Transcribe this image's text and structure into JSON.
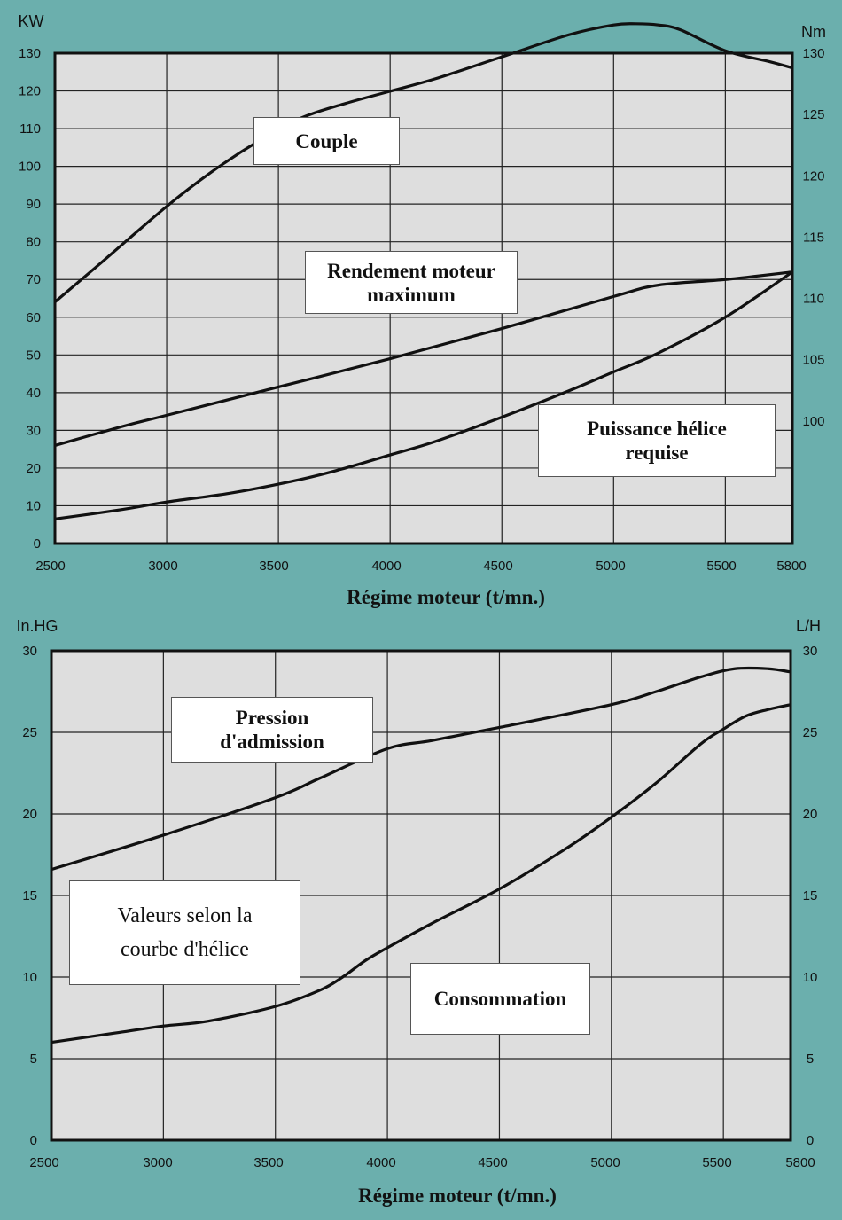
{
  "chart_data": [
    {
      "type": "line",
      "title": "",
      "xlabel": "Régime moteur (t/mn.)",
      "ylabel": "KW",
      "y2label": "Nm",
      "x_ticks": [
        2500,
        3000,
        3500,
        4000,
        4500,
        5000,
        5500,
        5800
      ],
      "xlim": [
        2500,
        5800
      ],
      "ylim": [
        0,
        130
      ],
      "y_ticks": [
        0,
        10,
        20,
        30,
        40,
        50,
        60,
        70,
        80,
        90,
        100,
        110,
        120,
        130
      ],
      "y2lim": [
        90,
        130
      ],
      "y2_ticks": [
        100,
        105,
        110,
        115,
        120,
        125,
        130
      ],
      "grid": true,
      "annotations": [
        {
          "id": "couple",
          "text": "Couple"
        },
        {
          "id": "rendement",
          "text": "Rendement moteur\nmaximum"
        },
        {
          "id": "puissance",
          "text": "Puissance hélice\nrequise"
        }
      ],
      "series": [
        {
          "name": "Couple",
          "axis": "y2",
          "x": [
            2500,
            2700,
            3000,
            3200,
            3400,
            3600,
            3800,
            4000,
            4200,
            4500,
            4800,
            5000,
            5100,
            5200,
            5300,
            5500,
            5700,
            5800
          ],
          "values": [
            109.7,
            112.8,
            117.5,
            120.3,
            122.7,
            124.7,
            125.9,
            126.9,
            127.9,
            129.7,
            131.5,
            132.3,
            132.4,
            132.3,
            131.9,
            130.2,
            129.3,
            128.8
          ]
        },
        {
          "name": "Rendement moteur maximum",
          "x": [
            2500,
            2800,
            3000,
            3500,
            4000,
            4500,
            5000,
            5200,
            5500,
            5800
          ],
          "values": [
            26,
            31,
            34,
            41.5,
            49,
            57,
            65.5,
            68.5,
            70,
            72
          ]
        },
        {
          "name": "Puissance hélice requise",
          "x": [
            2500,
            2800,
            3000,
            3300,
            3600,
            3800,
            4000,
            4200,
            4500,
            4800,
            5000,
            5200,
            5500,
            5800
          ],
          "values": [
            6.5,
            9,
            11,
            13.5,
            17,
            20,
            23.5,
            27,
            33.5,
            40.5,
            45.5,
            50.5,
            60,
            72
          ]
        }
      ]
    },
    {
      "type": "line",
      "title": "",
      "xlabel": "Régime moteur (t/mn.)",
      "ylabel": "In.HG",
      "y2label": "L/H",
      "x_ticks": [
        2500,
        3000,
        3500,
        4000,
        4500,
        5000,
        5500,
        5800
      ],
      "xlim": [
        2500,
        5800
      ],
      "ylim": [
        0,
        30
      ],
      "y_ticks": [
        0,
        5,
        10,
        15,
        20,
        25,
        30
      ],
      "y2lim": [
        0,
        30
      ],
      "y2_ticks": [
        0,
        5,
        10,
        15,
        20,
        25,
        30
      ],
      "grid": true,
      "annotations": [
        {
          "id": "pression",
          "text": "Pression\nd'admission"
        },
        {
          "id": "valeurs",
          "text": "Valeurs selon la\ncourbe d'hélice"
        },
        {
          "id": "consommation",
          "text": "Consommation"
        }
      ],
      "series": [
        {
          "name": "Pression d'admission",
          "x": [
            2500,
            3000,
            3500,
            3700,
            4000,
            4200,
            4500,
            5000,
            5200,
            5400,
            5550,
            5700,
            5800
          ],
          "values": [
            16.6,
            18.7,
            21,
            22.2,
            24,
            24.5,
            25.3,
            26.7,
            27.5,
            28.4,
            28.9,
            28.9,
            28.7
          ]
        },
        {
          "name": "Consommation",
          "x": [
            2500,
            2800,
            3000,
            3200,
            3500,
            3700,
            3800,
            3900,
            4000,
            4200,
            4500,
            4800,
            5000,
            5200,
            5400,
            5500,
            5600,
            5700,
            5800
          ],
          "values": [
            6,
            6.6,
            7,
            7.3,
            8.2,
            9.2,
            10,
            11,
            11.8,
            13.3,
            15.4,
            17.9,
            19.8,
            21.9,
            24.3,
            25.2,
            26,
            26.4,
            26.7
          ]
        }
      ]
    }
  ],
  "colors": {
    "background": "#6bafad",
    "plot": "#dedede",
    "line": "#111111"
  }
}
